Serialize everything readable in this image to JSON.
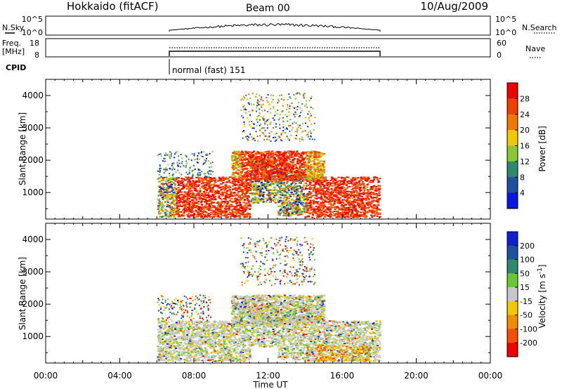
{
  "header": {
    "site": "Hokkaido (fitACF)",
    "beam": "Beam 00",
    "date": "10/Aug/2009"
  },
  "top_panels": {
    "nsky": {
      "label": "N.Sky",
      "ticks": [
        "10^5",
        "10^0"
      ],
      "right_ticks": [
        "10^5",
        "10^0"
      ],
      "legend_label": "N.Search"
    },
    "freq": {
      "label_lines": [
        "Freq.",
        "[MHz]"
      ],
      "ticks": [
        "18",
        "8"
      ],
      "right_ticks": [
        "60",
        "0"
      ],
      "legend_label": "Nave"
    },
    "cpid": {
      "label": "CPID",
      "mode_text": "normal (fast) 151"
    }
  },
  "chart_data": [
    {
      "type": "heatmap",
      "name": "power",
      "ylabel": "Slant Range [km]",
      "ylim": [
        180,
        4500
      ],
      "yticks": [
        1000,
        2000,
        3000,
        4000
      ],
      "colorbar": {
        "label": "Power [dB]",
        "range": [
          0,
          32
        ],
        "ticks": [
          "4",
          "8",
          "12",
          "16",
          "20",
          "24",
          "28"
        ],
        "colors": [
          "#0a14e6",
          "#1e50a0",
          "#2e8a6e",
          "#8cc832",
          "#f0c800",
          "#f07800",
          "#f04000",
          "#f00000"
        ]
      },
      "data_window_hours": [
        6,
        18
      ]
    },
    {
      "type": "heatmap",
      "name": "velocity",
      "ylabel": "Slant Range [km]",
      "ylim": [
        180,
        4500
      ],
      "yticks": [
        1000,
        2000,
        3000,
        4000
      ],
      "colorbar": {
        "label": "Velocity [m s^-1]",
        "range": [
          -250,
          250
        ],
        "ticks": [
          "200",
          "100",
          "50",
          "15",
          "-15",
          "-50",
          "-100",
          "-200"
        ],
        "colors": [
          "#1020d0",
          "#1e50a0",
          "#2e8a6e",
          "#6cc832",
          "#c8c8c8",
          "#f0c800",
          "#f08c00",
          "#f05000",
          "#f00000"
        ]
      },
      "data_window_hours": [
        6,
        18
      ]
    }
  ],
  "time_axis": {
    "xlabel": "Time UT",
    "xlim_hours": [
      0,
      24
    ],
    "ticks": [
      "00:00",
      "04:00",
      "08:00",
      "12:00",
      "16:00",
      "20:00",
      "00:00"
    ]
  }
}
